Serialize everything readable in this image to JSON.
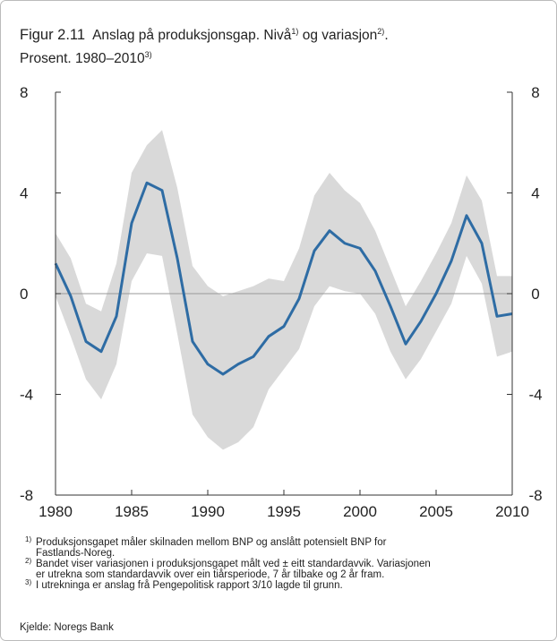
{
  "chart_data": {
    "type": "line-band",
    "title_label": "Figur 2.11",
    "title_lines": [
      [
        "Anslag på produksjonsgap. Nivå",
        "1)",
        " og variasjon",
        "2)",
        "."
      ],
      [
        "Prosent. 1980–2010",
        "3)"
      ]
    ],
    "x": [
      1980,
      1981,
      1982,
      1983,
      1984,
      1985,
      1986,
      1987,
      1988,
      1989,
      1990,
      1991,
      1992,
      1993,
      1994,
      1995,
      1996,
      1997,
      1998,
      1999,
      2000,
      2001,
      2002,
      2003,
      2004,
      2005,
      2006,
      2007,
      2008,
      2009,
      2010
    ],
    "values": [
      1.2,
      -0.1,
      -1.9,
      -2.3,
      -0.9,
      2.8,
      4.4,
      4.1,
      1.4,
      -1.9,
      -2.8,
      -3.2,
      -2.8,
      -2.5,
      -1.7,
      -1.3,
      -0.2,
      1.7,
      2.5,
      2.0,
      1.8,
      0.9,
      -0.5,
      -2.0,
      -1.1,
      0.0,
      1.3,
      3.1,
      2.0,
      -0.9,
      -0.8
    ],
    "band_upper": [
      2.4,
      1.4,
      -0.4,
      -0.7,
      1.2,
      4.8,
      5.9,
      6.5,
      4.2,
      1.1,
      0.3,
      -0.1,
      0.1,
      0.3,
      0.6,
      0.5,
      1.8,
      3.9,
      4.8,
      4.1,
      3.6,
      2.5,
      1.0,
      -0.5,
      0.5,
      1.6,
      2.8,
      4.7,
      3.7,
      0.7,
      0.7
    ],
    "band_lower": [
      -0.1,
      -1.7,
      -3.4,
      -4.2,
      -2.8,
      0.5,
      1.6,
      1.5,
      -1.6,
      -4.8,
      -5.7,
      -6.2,
      -5.9,
      -5.3,
      -3.8,
      -3.0,
      -2.2,
      -0.5,
      0.3,
      0.1,
      0.0,
      -0.8,
      -2.3,
      -3.4,
      -2.6,
      -1.5,
      -0.4,
      1.5,
      0.4,
      -2.5,
      -2.3
    ],
    "color": "#2e6ca4",
    "band_color": "#d9d9d9",
    "xlim": [
      1980,
      2010
    ],
    "xticks": [
      1980,
      1985,
      1990,
      1995,
      2000,
      2005,
      2010
    ],
    "ylim": [
      -8,
      8
    ],
    "yticks": [
      -8,
      -4,
      0,
      4,
      8
    ],
    "y2lim": [
      -8,
      8
    ],
    "y2ticks": [
      -8,
      -4,
      0,
      4,
      8
    ],
    "footnotes": [
      {
        "marker": "1)",
        "lines": [
          "Produksjonsgapet måler skilnaden mellom BNP og anslått potensielt BNP for",
          "Fastlands-Noreg."
        ]
      },
      {
        "marker": "2)",
        "lines": [
          "Bandet viser variasjonen i produksjonsgapet målt ved ± eitt standardavvik. Variasjonen",
          "er utrekna som standardavvik over ein tiårsperiode, 7 år tilbake og 2 år fram."
        ]
      },
      {
        "marker": "3)",
        "lines": [
          "I utrekninga er anslag frå Pengepolitisk rapport 3/10 lagde til grunn."
        ]
      }
    ],
    "source": "Kjelde: Noregs Bank"
  }
}
